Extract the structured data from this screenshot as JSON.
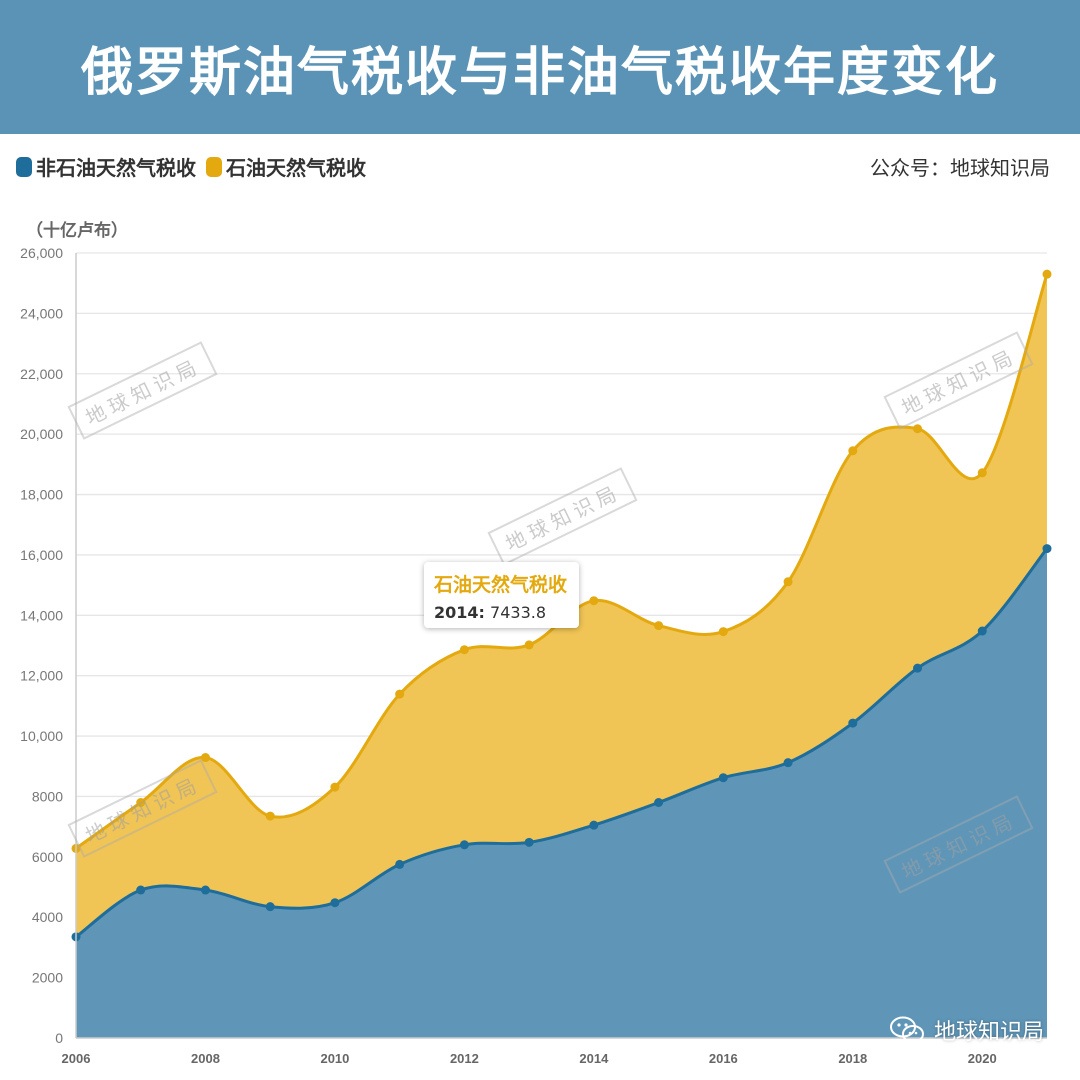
{
  "header": {
    "title": "俄罗斯油气税收与非油气税收年度变化"
  },
  "legend": {
    "items": [
      {
        "label": "非石油天然气税收",
        "color": "#1f6d9b"
      },
      {
        "label": "石油天然气税收",
        "color": "#e3a90f"
      }
    ]
  },
  "source": "公众号：地球知识局",
  "unit": "（十亿卢布）",
  "watermark": "地球知识局",
  "brand": {
    "text": "地球知识局",
    "icon": "wechat-icon"
  },
  "tooltip": {
    "title": "石油天然气税收",
    "year": "2014:",
    "value": "7433.8"
  },
  "chart_data": {
    "type": "area",
    "stacked": true,
    "x": [
      2006,
      2007,
      2008,
      2009,
      2010,
      2011,
      2012,
      2013,
      2014,
      2015,
      2016,
      2017,
      2018,
      2019,
      2020,
      2021
    ],
    "xticks": [
      "2006",
      "2008",
      "2010",
      "2012",
      "2014",
      "2016",
      "2018",
      "2020"
    ],
    "yticks": [
      "0",
      "2000",
      "4000",
      "6000",
      "8000",
      "10,000",
      "12,000",
      "14,000",
      "16,000",
      "18,000",
      "20,000",
      "22,000",
      "24,000",
      "26,000"
    ],
    "ylim": [
      0,
      26000
    ],
    "grid": true,
    "legend_position": "top-left",
    "series": [
      {
        "name": "非石油天然气税收",
        "color": "#1f6d9b",
        "fill": "#5f96b8",
        "values": [
          3350,
          4900,
          4900,
          4350,
          4480,
          5750,
          6400,
          6480,
          7050,
          7800,
          8620,
          9120,
          10430,
          12250,
          13480,
          16210
        ]
      },
      {
        "name": "石油天然气税收",
        "color": "#e3a90f",
        "fill": "#f0c455",
        "values": [
          2930,
          2900,
          4390,
          3000,
          3830,
          5640,
          6460,
          6540,
          7433.8,
          5860,
          4840,
          5990,
          9020,
          7930,
          5240,
          9090
        ]
      }
    ]
  }
}
